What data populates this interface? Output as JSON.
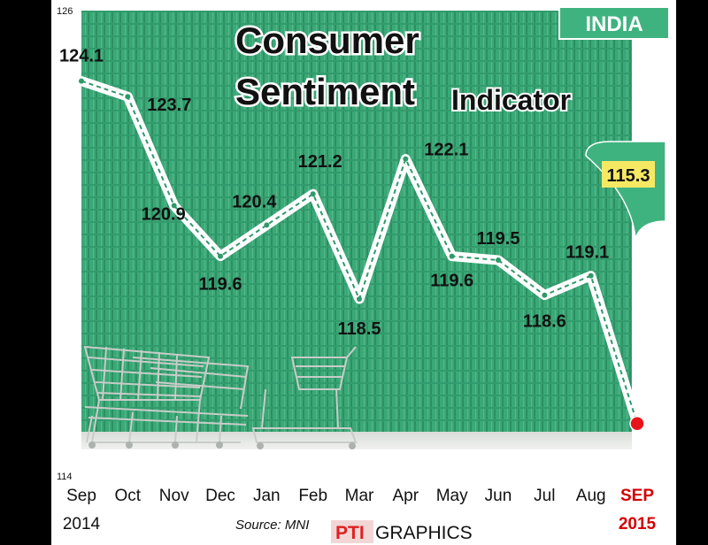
{
  "tag": "INDIA",
  "title_line1": "Consumer",
  "title_line2": "Sentiment",
  "title_line3": "Indicator",
  "source": "Source: MNI",
  "credit_logo": "PTI",
  "credit_text": "GRAPHICS",
  "callout_value": "115.3",
  "colors": {
    "background_green": "#3fb37f",
    "tag_green": "#3fb37f",
    "highlight_red": "#e8141b",
    "last_label_red": "#d40000"
  },
  "chart_data": {
    "type": "line",
    "title": "Consumer Sentiment Indicator",
    "xlabel": "",
    "ylabel": "",
    "ylim": [
      114,
      126
    ],
    "yticks": [
      "126",
      "114"
    ],
    "grid": false,
    "categories": [
      "Sep",
      "Oct",
      "Nov",
      "Dec",
      "Jan",
      "Feb",
      "Mar",
      "Apr",
      "May",
      "Jun",
      "Jul",
      "Aug",
      "SEP"
    ],
    "year_labels": [
      {
        "index": 0,
        "label": "2014"
      },
      {
        "index": 12,
        "label": "2015"
      }
    ],
    "series": [
      {
        "values": [
          124.1,
          123.7,
          120.9,
          119.6,
          120.4,
          121.2,
          118.5,
          122.1,
          119.6,
          119.5,
          118.6,
          119.1,
          115.3
        ],
        "value_labels": [
          "124.1",
          "123.7",
          "120.9",
          "119.6",
          "120.4",
          "121.2",
          "118.5",
          "122.1",
          "119.6",
          "119.5",
          "118.6",
          "119.1",
          "115.3"
        ]
      }
    ]
  }
}
